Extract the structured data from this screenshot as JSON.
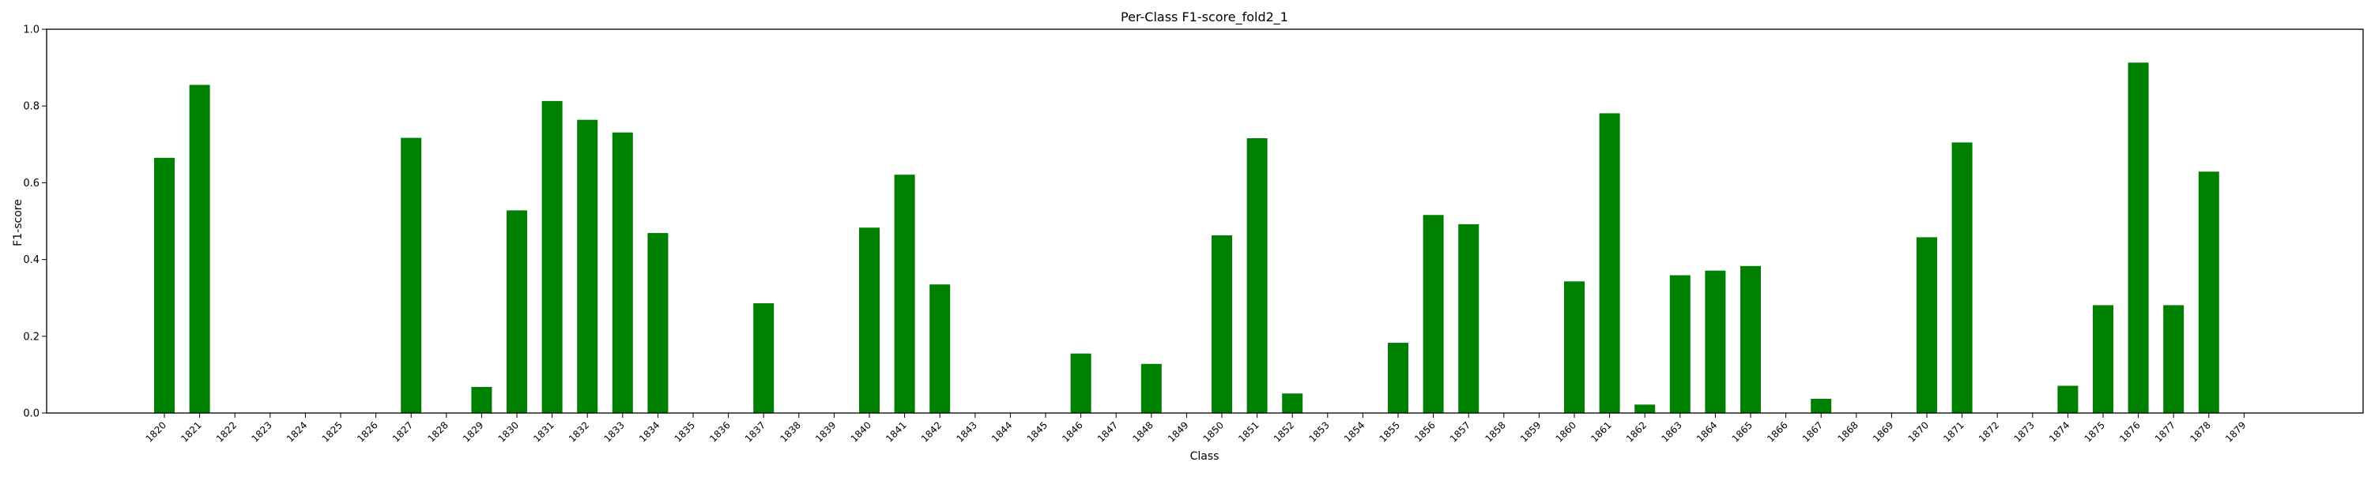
{
  "chart_data": {
    "type": "bar",
    "title": "Per-Class F1-score_fold2_1",
    "xlabel": "Class",
    "ylabel": "F1-score",
    "ylim": [
      0,
      1.0
    ],
    "yticks": [
      "0.0",
      "0.2",
      "0.4",
      "0.6",
      "0.8",
      "1.0"
    ],
    "grid": false,
    "bar_color": "#008000",
    "categories": [
      "1820",
      "1821",
      "1822",
      "1823",
      "1824",
      "1825",
      "1826",
      "1827",
      "1828",
      "1829",
      "1830",
      "1831",
      "1832",
      "1833",
      "1834",
      "1835",
      "1836",
      "1837",
      "1838",
      "1839",
      "1840",
      "1841",
      "1842",
      "1843",
      "1844",
      "1845",
      "1846",
      "1847",
      "1848",
      "1849",
      "1850",
      "1851",
      "1852",
      "1853",
      "1854",
      "1855",
      "1856",
      "1857",
      "1858",
      "1859",
      "1860",
      "1861",
      "1862",
      "1863",
      "1864",
      "1865",
      "1866",
      "1867",
      "1868",
      "1869",
      "1870",
      "1871",
      "1872",
      "1873",
      "1874",
      "1875",
      "1876",
      "1877",
      "1878",
      "1879"
    ],
    "values": [
      0.665,
      0.855,
      0,
      0,
      0,
      0,
      0,
      0.717,
      0,
      0.068,
      0.528,
      0.813,
      0.764,
      0.731,
      0.469,
      0,
      0,
      0.286,
      0,
      0,
      0.483,
      0.621,
      0.335,
      0,
      0,
      0,
      0.155,
      0,
      0.128,
      0,
      0.463,
      0.716,
      0.051,
      0,
      0,
      0.183,
      0.516,
      0.492,
      0,
      0,
      0.343,
      0.781,
      0.022,
      0.359,
      0.371,
      0.383,
      0,
      0.037,
      0,
      0,
      0.458,
      0.705,
      0,
      0,
      0.071,
      0.281,
      0.913,
      0.281,
      0.629,
      0
    ]
  }
}
